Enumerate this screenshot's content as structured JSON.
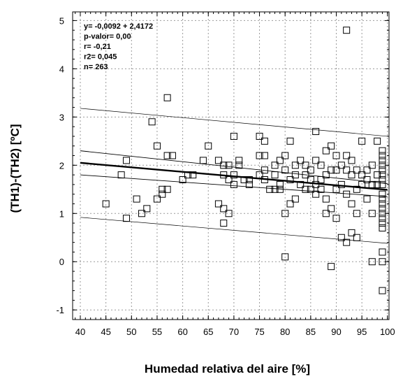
{
  "chart_data": {
    "type": "scatter",
    "title": "",
    "xlabel": "Humedad relativa del aire [%]",
    "ylabel": "(TH1)-(TH2) [ºC]",
    "xlim": [
      38.5,
      100.3
    ],
    "ylim": [
      -1.2,
      5.18
    ],
    "xticks": [
      40,
      45,
      50,
      55,
      60,
      65,
      70,
      75,
      80,
      85,
      90,
      95,
      100
    ],
    "yticks": [
      -1,
      0,
      1,
      2,
      3,
      4,
      5
    ],
    "grid": true,
    "marker": "open-square",
    "annotations": [
      "y= -0,0092 + 2,4172",
      "p-valor= 0,00",
      "r= -0,21",
      "r2= 0,045",
      "n= 263"
    ],
    "regression": {
      "x": [
        40,
        100
      ],
      "y": [
        2.05,
        1.49
      ]
    },
    "confidence_band": {
      "upper": {
        "x": [
          40,
          100
        ],
        "y": [
          2.3,
          1.62
        ]
      },
      "lower": {
        "x": [
          40,
          100
        ],
        "y": [
          1.8,
          1.35
        ]
      }
    },
    "prediction_band": {
      "upper": {
        "x": [
          40,
          100
        ],
        "y": [
          3.18,
          2.6
        ]
      },
      "lower": {
        "x": [
          40,
          100
        ],
        "y": [
          0.92,
          0.38
        ]
      }
    },
    "points": [
      [
        45,
        1.2
      ],
      [
        48,
        1.8
      ],
      [
        49,
        0.9
      ],
      [
        49,
        2.1
      ],
      [
        51,
        1.3
      ],
      [
        52,
        1.0
      ],
      [
        53,
        1.1
      ],
      [
        54,
        2.9
      ],
      [
        55,
        1.3
      ],
      [
        55,
        2.4
      ],
      [
        56,
        1.4
      ],
      [
        56,
        1.5
      ],
      [
        57,
        3.4
      ],
      [
        57,
        2.2
      ],
      [
        57,
        1.5
      ],
      [
        58,
        2.2
      ],
      [
        60,
        1.7
      ],
      [
        61,
        1.8
      ],
      [
        62,
        1.8
      ],
      [
        64,
        2.1
      ],
      [
        65,
        2.4
      ],
      [
        67,
        1.2
      ],
      [
        67,
        2.1
      ],
      [
        68,
        1.1
      ],
      [
        68,
        0.8
      ],
      [
        68,
        1.8
      ],
      [
        68,
        2.0
      ],
      [
        69,
        1.0
      ],
      [
        69,
        1.7
      ],
      [
        69,
        2.0
      ],
      [
        70,
        1.8
      ],
      [
        70,
        1.6
      ],
      [
        70,
        2.6
      ],
      [
        71,
        2.1
      ],
      [
        71,
        2.0
      ],
      [
        72,
        1.7
      ],
      [
        73,
        1.6
      ],
      [
        73,
        1.7
      ],
      [
        75,
        2.6
      ],
      [
        75,
        2.2
      ],
      [
        75,
        1.8
      ],
      [
        76,
        2.5
      ],
      [
        76,
        2.2
      ],
      [
        76,
        1.9
      ],
      [
        76,
        1.7
      ],
      [
        77,
        1.5
      ],
      [
        78,
        2.0
      ],
      [
        78,
        1.8
      ],
      [
        78,
        1.5
      ],
      [
        79,
        2.1
      ],
      [
        79,
        1.5
      ],
      [
        79,
        1.6
      ],
      [
        80,
        1.0
      ],
      [
        80,
        1.9
      ],
      [
        80,
        0.1
      ],
      [
        80,
        2.2
      ],
      [
        81,
        1.7
      ],
      [
        81,
        1.2
      ],
      [
        81,
        2.5
      ],
      [
        82,
        1.3
      ],
      [
        82,
        1.8
      ],
      [
        82,
        2.0
      ],
      [
        83,
        1.6
      ],
      [
        83,
        2.1
      ],
      [
        84,
        1.5
      ],
      [
        84,
        1.8
      ],
      [
        84,
        2.0
      ],
      [
        85,
        1.9
      ],
      [
        85,
        1.5
      ],
      [
        85,
        1.7
      ],
      [
        86,
        2.7
      ],
      [
        86,
        2.1
      ],
      [
        86,
        1.6
      ],
      [
        86,
        1.4
      ],
      [
        87,
        2.0
      ],
      [
        87,
        1.7
      ],
      [
        87,
        1.5
      ],
      [
        88,
        2.3
      ],
      [
        88,
        1.3
      ],
      [
        88,
        1.0
      ],
      [
        88,
        1.8
      ],
      [
        89,
        2.4
      ],
      [
        89,
        1.9
      ],
      [
        89,
        1.1
      ],
      [
        89,
        -0.1
      ],
      [
        90,
        1.5
      ],
      [
        90,
        1.9
      ],
      [
        90,
        2.2
      ],
      [
        90,
        0.9
      ],
      [
        91,
        0.5
      ],
      [
        91,
        1.6
      ],
      [
        91,
        2.0
      ],
      [
        92,
        4.8
      ],
      [
        92,
        1.4
      ],
      [
        92,
        0.4
      ],
      [
        92,
        1.9
      ],
      [
        92,
        2.2
      ],
      [
        93,
        1.8
      ],
      [
        93,
        1.2
      ],
      [
        93,
        0.6
      ],
      [
        93,
        2.1
      ],
      [
        94,
        1.5
      ],
      [
        94,
        1.0
      ],
      [
        94,
        0.5
      ],
      [
        94,
        1.9
      ],
      [
        95,
        1.6
      ],
      [
        95,
        1.8
      ],
      [
        95,
        2.5
      ],
      [
        96,
        1.3
      ],
      [
        96,
        1.7
      ],
      [
        96,
        1.9
      ],
      [
        97,
        1.0
      ],
      [
        97,
        1.6
      ],
      [
        97,
        2.0
      ],
      [
        97,
        0.0
      ],
      [
        98,
        1.6
      ],
      [
        98,
        2.5
      ],
      [
        98,
        1.8
      ],
      [
        99,
        2.2
      ],
      [
        99,
        0.0
      ],
      [
        99,
        0.2
      ],
      [
        99,
        -0.6
      ],
      [
        99,
        0.7
      ],
      [
        99,
        0.8
      ],
      [
        99,
        0.9
      ],
      [
        99,
        1.0
      ],
      [
        99,
        1.1
      ],
      [
        99,
        1.2
      ],
      [
        99,
        1.3
      ],
      [
        99,
        1.4
      ],
      [
        99,
        1.6
      ],
      [
        99,
        1.7
      ],
      [
        99,
        1.8
      ],
      [
        99,
        1.9
      ],
      [
        99,
        2.0
      ],
      [
        99,
        2.1
      ],
      [
        99,
        2.3
      ]
    ]
  }
}
